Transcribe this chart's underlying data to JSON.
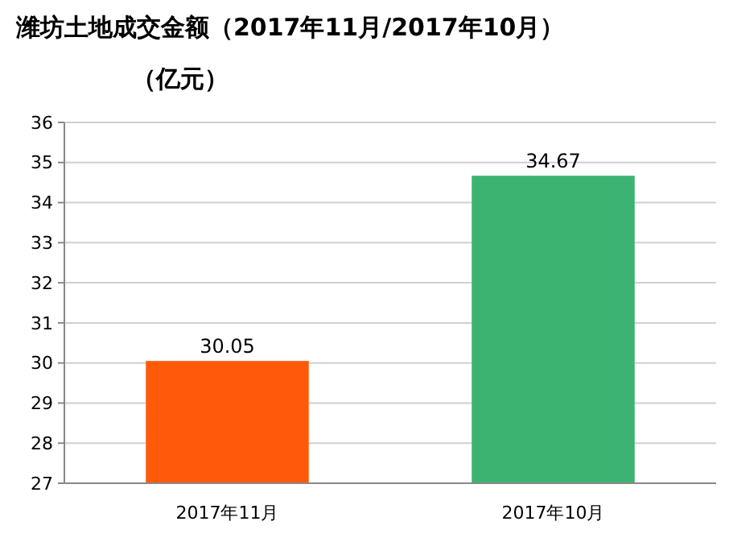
{
  "chart_data": {
    "type": "bar",
    "title": "潍坊土地成交金额（2017年11月/2017年10月）",
    "subtitle": "（亿元）",
    "categories": [
      "2017年11月",
      "2017年10月"
    ],
    "values": [
      30.05,
      34.67
    ],
    "colors": [
      "#ff5a0a",
      "#3cb371"
    ],
    "ylim": [
      27,
      36
    ],
    "yticks": [
      27,
      28,
      29,
      30,
      31,
      32,
      33,
      34,
      35,
      36
    ],
    "grid": "y",
    "data_labels": true
  }
}
